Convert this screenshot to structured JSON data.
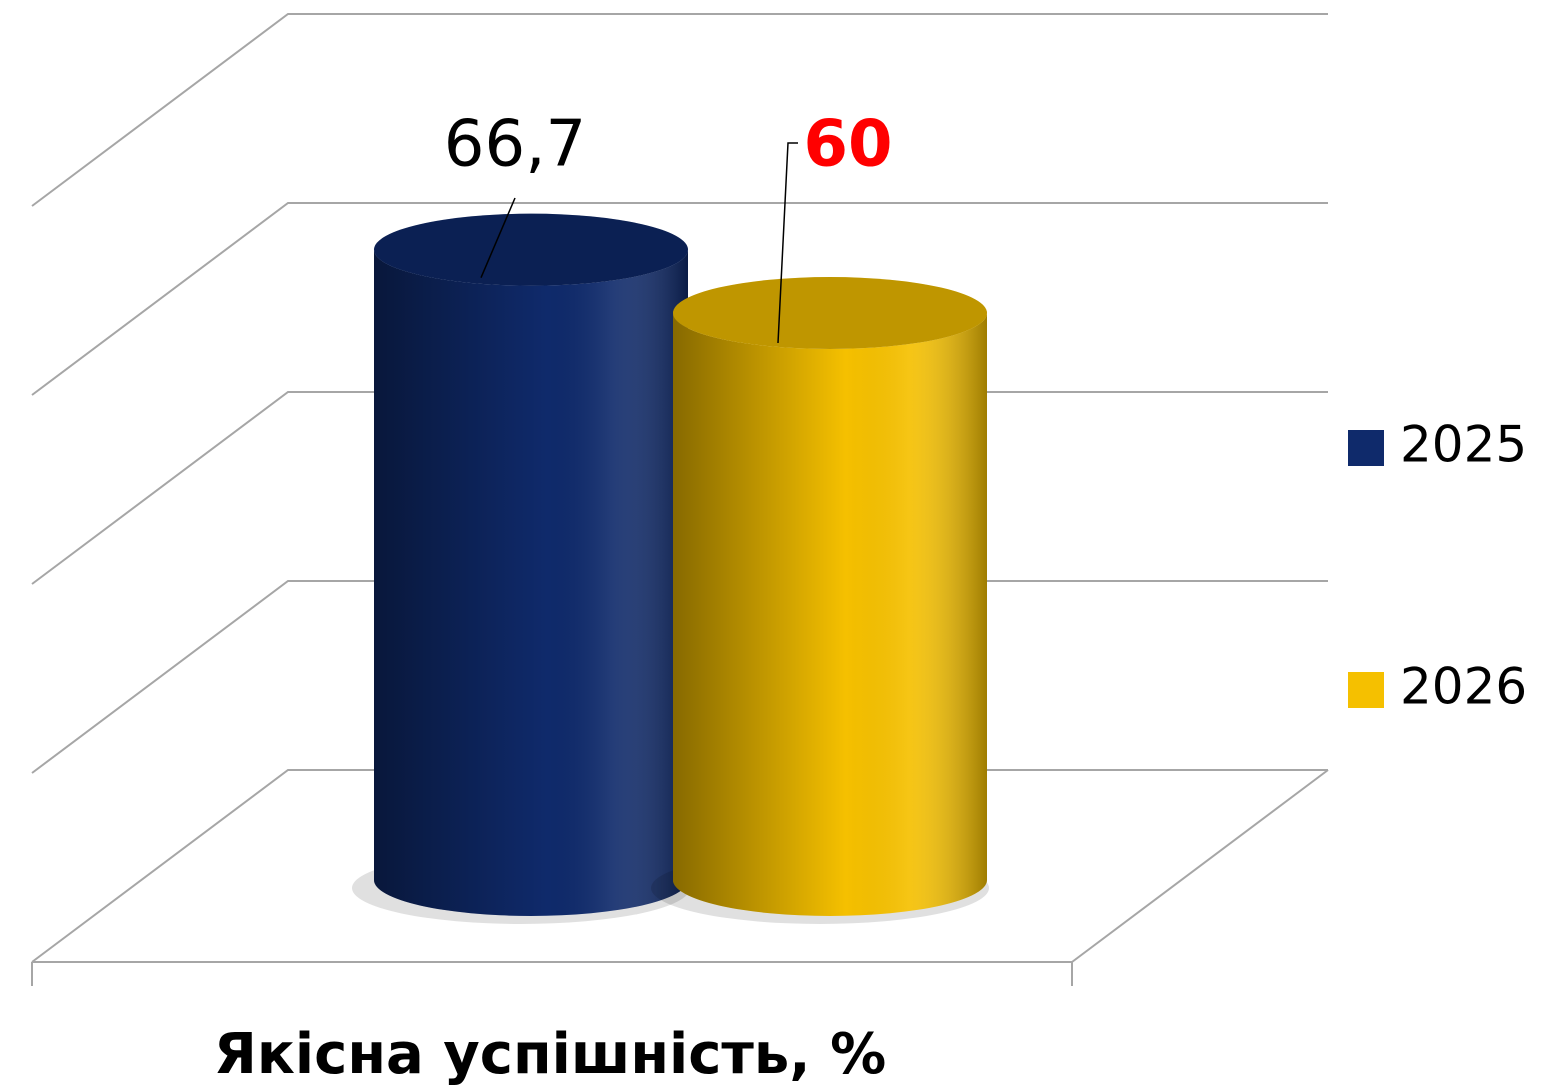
{
  "chart_data": {
    "type": "bar3d_cylinder",
    "categories": [
      "Якісна успішність, %"
    ],
    "series": [
      {
        "name": "2025",
        "color": "#0f2a6b",
        "values": [
          66.7
        ],
        "value_labels": [
          "66,7"
        ],
        "label_color": "#000000",
        "label_bold": false
      },
      {
        "name": "2026",
        "color": "#f5c000",
        "values": [
          60
        ],
        "value_labels": [
          "60"
        ],
        "label_color": "#ff0000",
        "label_bold": true
      }
    ],
    "ylim": [
      0,
      80
    ],
    "yticks": [
      0,
      20,
      40,
      60,
      80
    ],
    "grid": true,
    "legend": "right"
  }
}
